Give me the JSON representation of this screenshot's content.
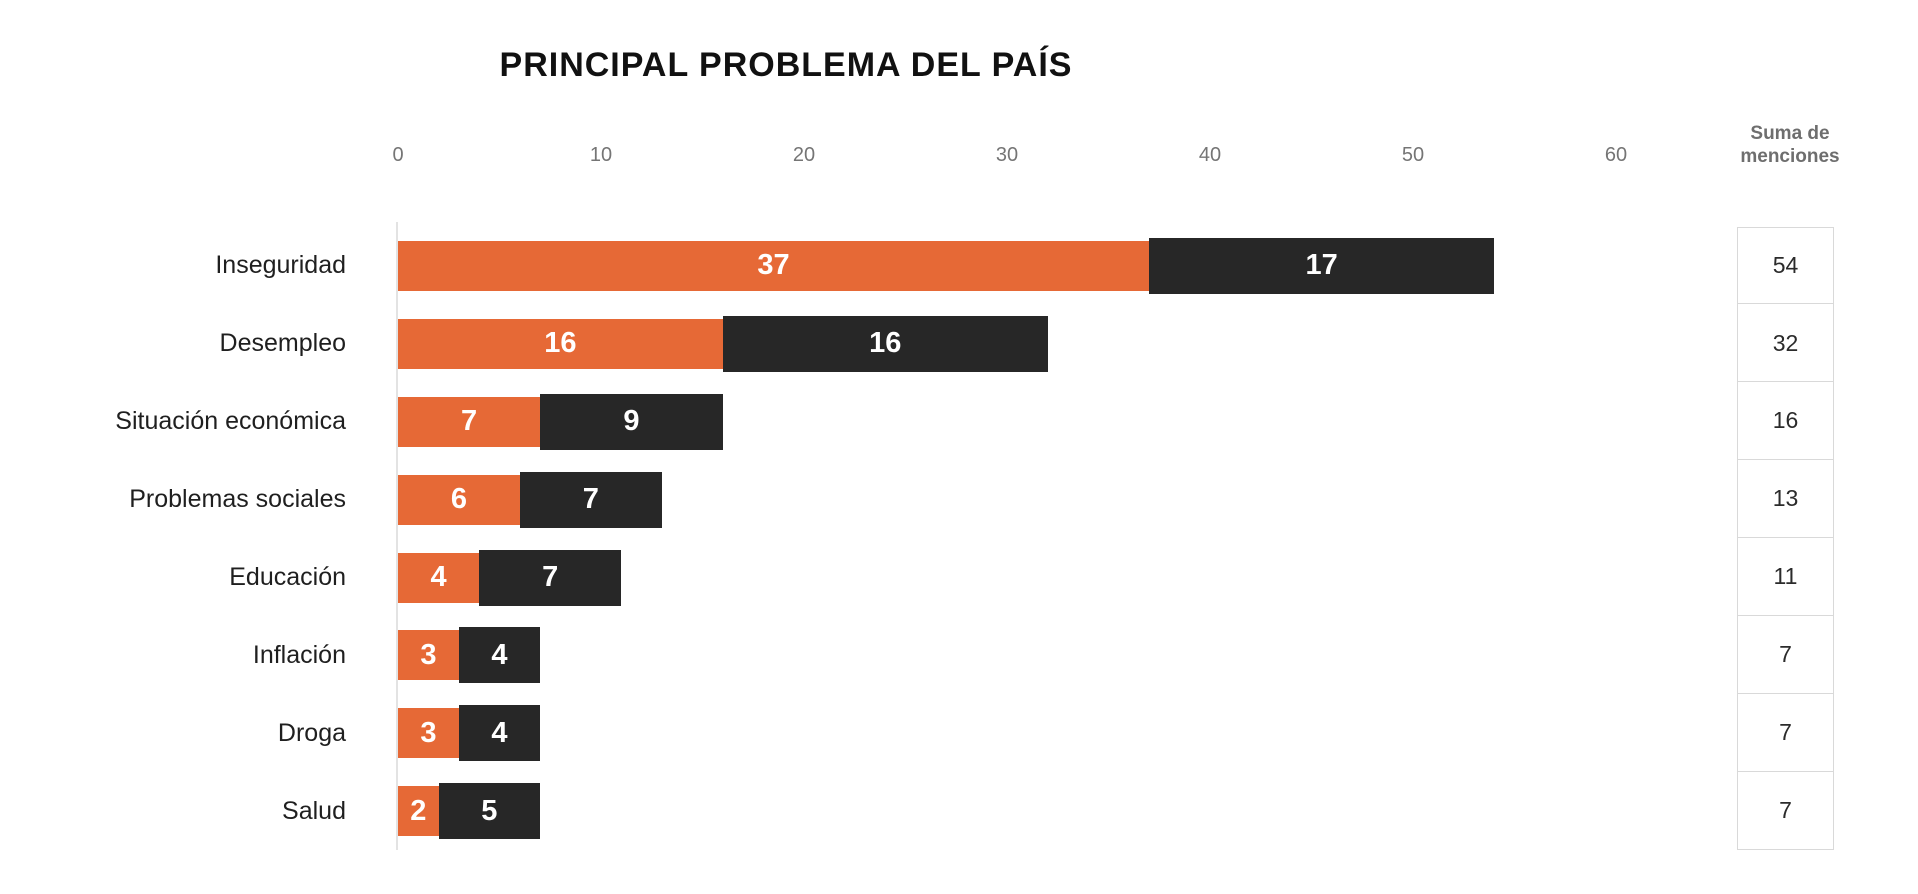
{
  "title": "PRINCIPAL PROBLEMA DEL PAÍS",
  "colors": {
    "orange": "#E66936",
    "black": "#272727",
    "tick_label": "#757575",
    "sum_header": "#6E6E6E",
    "cell_border": "#D9D9D9",
    "category_label": "#1F1F1F",
    "bar_value_text": "#FFFFFF",
    "background": "#FFFFFF"
  },
  "chart_data": {
    "type": "bar",
    "orientation": "horizontal",
    "stacked": true,
    "title": "PRINCIPAL PROBLEMA DEL PAÍS",
    "categories": [
      "Inseguridad",
      "Desempleo",
      "Situación económica",
      "Problemas sociales",
      "Educación",
      "Inflación",
      "Droga",
      "Salud"
    ],
    "series": [
      {
        "name": "orange-segment",
        "color": "#E66936",
        "values": [
          37,
          16,
          7,
          6,
          4,
          3,
          3,
          2
        ]
      },
      {
        "name": "black-segment",
        "color": "#272727",
        "values": [
          17,
          16,
          9,
          7,
          7,
          4,
          4,
          5
        ]
      }
    ],
    "totals": [
      54,
      32,
      16,
      13,
      11,
      7,
      7,
      7
    ],
    "x_ticks": [
      0,
      10,
      20,
      30,
      40,
      50,
      60
    ],
    "xlim": [
      0,
      60
    ],
    "grid": false,
    "legend": "none",
    "xlabel": "",
    "ylabel": "",
    "sum_column": {
      "header": "Suma de menciones",
      "values": [
        54,
        32,
        16,
        13,
        11,
        7,
        7,
        7
      ]
    }
  }
}
